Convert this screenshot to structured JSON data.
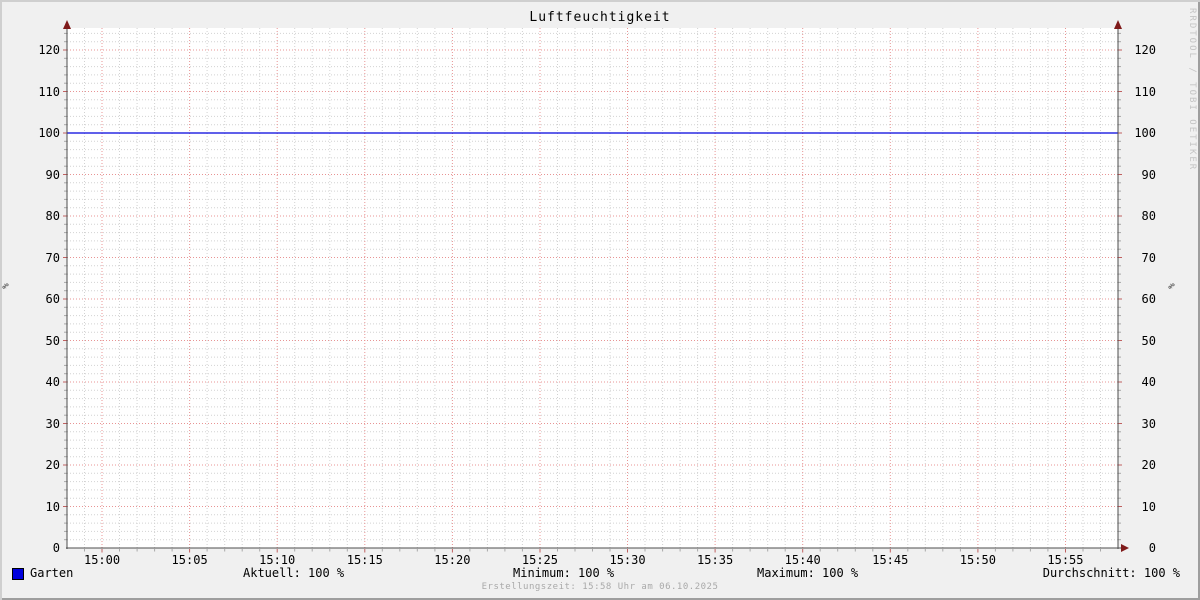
{
  "title": "Luftfeuchtigkeit",
  "watermark": "RRDTOOL / TOBI OETIKER",
  "footer": "Erstellungszeit: 15:58 Uhr am 06.10.2025",
  "legend": {
    "series_label": "Garten",
    "series_color": "#0000dd",
    "stats": [
      "Aktuell: 100 %",
      "Minimum: 100 %",
      "Maximum: 100 %",
      "Durchschnitt: 100 %"
    ]
  },
  "colors": {
    "background": "#f0f0f0",
    "canvas": "#ffffff",
    "grid_minor": "#d2d2d2",
    "grid_major": "#e89494",
    "axis": "#4d4d4d",
    "arrow": "#7f1a1a",
    "tick_minor": "#a8a8a8",
    "tick_major": "#c06060",
    "watermark_text": "#c4c4c4",
    "footer_text": "#a9a9a9"
  },
  "chart_data": {
    "type": "line",
    "title": "Luftfeuchtigkeit",
    "ylabel": "%",
    "ylabel_right": "%",
    "ylim": [
      0,
      125
    ],
    "y_ticks": [
      0,
      10,
      20,
      30,
      40,
      50,
      60,
      70,
      80,
      90,
      100,
      110,
      120
    ],
    "y_minor_step": 2,
    "x_range": [
      "14:58",
      "15:58"
    ],
    "x_ticks": [
      "15:00",
      "15:05",
      "15:10",
      "15:15",
      "15:20",
      "15:25",
      "15:30",
      "15:35",
      "15:40",
      "15:45",
      "15:50",
      "15:55"
    ],
    "x_minor_step_min": 1,
    "grid": true,
    "legend_position": "bottom",
    "series": [
      {
        "name": "Garten",
        "color": "#0000dd",
        "x": [
          "14:58",
          "15:58"
        ],
        "y": [
          100,
          100
        ]
      }
    ],
    "stats": {
      "aktuell": "100 %",
      "minimum": "100 %",
      "maximum": "100 %",
      "durchschnitt": "100 %"
    }
  }
}
